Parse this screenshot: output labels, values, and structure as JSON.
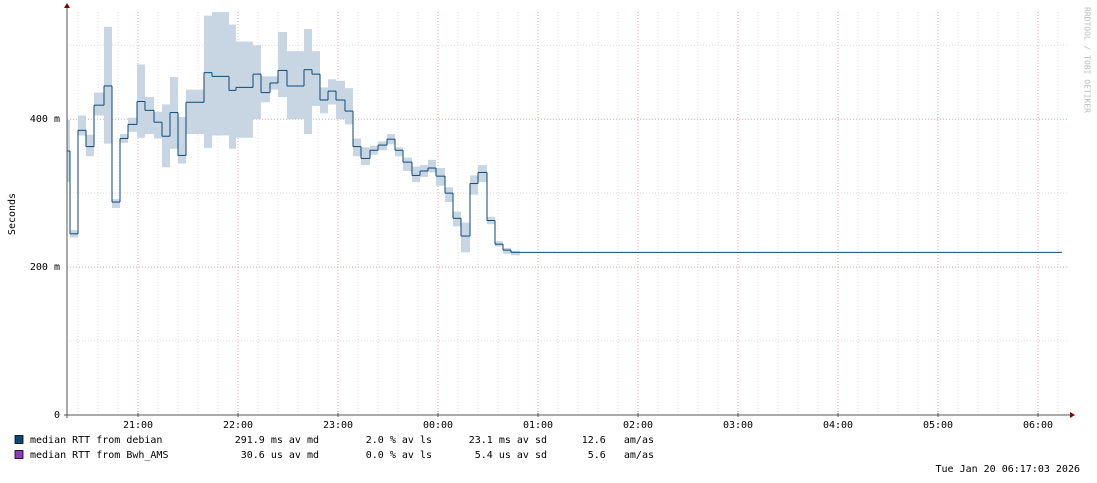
{
  "chart_data": {
    "type": "step",
    "y_label": "Seconds",
    "watermark": "RRDTOOL / TOBI OETIKER",
    "timestamp": "Tue Jan 20 06:17:03 2026",
    "xlim": [
      20.29,
      30.3
    ],
    "xticks": [
      {
        "value": 21,
        "label": "21:00"
      },
      {
        "value": 22,
        "label": "22:00"
      },
      {
        "value": 23,
        "label": "23:00"
      },
      {
        "value": 24,
        "label": "00:00"
      },
      {
        "value": 25,
        "label": "01:00"
      },
      {
        "value": 26,
        "label": "02:00"
      },
      {
        "value": 27,
        "label": "03:00"
      },
      {
        "value": 28,
        "label": "04:00"
      },
      {
        "value": 29,
        "label": "05:00"
      },
      {
        "value": 30,
        "label": "06:00"
      }
    ],
    "x_minor_step": 0.2,
    "ylim": [
      0,
      545
    ],
    "yticks": [
      0,
      {
        "value": 200,
        "label": "200 m"
      },
      {
        "value": 400,
        "label": "400 m"
      }
    ],
    "y_minor": [
      100,
      300,
      500
    ],
    "grid": true,
    "band_color": "#c8d5e3",
    "series": [
      {
        "name": "median RTT from debian",
        "color": "#0b4a78",
        "stats": [
          "291.9 ms av md",
          "2.0 % av ls",
          "23.1 ms av sd",
          "12.6   am/as"
        ],
        "x": [
          20.29,
          20.32,
          20.4,
          20.48,
          20.56,
          20.66,
          20.74,
          20.82,
          20.9,
          20.99,
          21.07,
          21.16,
          21.24,
          21.32,
          21.4,
          21.48,
          21.66,
          21.74,
          21.91,
          21.98,
          22.15,
          22.23,
          22.32,
          22.4,
          22.49,
          22.66,
          22.74,
          22.82,
          22.9,
          22.98,
          23.07,
          23.15,
          23.23,
          23.32,
          23.4,
          23.49,
          23.57,
          23.65,
          23.74,
          23.82,
          23.9,
          23.98,
          24.07,
          24.15,
          24.23,
          24.32,
          24.4,
          24.49,
          24.57,
          24.65,
          24.73,
          24.82
        ],
        "x_end": 30.24,
        "values": [
          357,
          245,
          385,
          363,
          419,
          445,
          288,
          374,
          393,
          424,
          412,
          396,
          377,
          409,
          351,
          423,
          463,
          458,
          439,
          443,
          461,
          436,
          449,
          466,
          445,
          467,
          461,
          426,
          438,
          426,
          411,
          363,
          347,
          358,
          365,
          373,
          358,
          342,
          324,
          330,
          334,
          323,
          300,
          266,
          242,
          313,
          328,
          263,
          231,
          223,
          220,
          220
        ],
        "band_low": [
          315,
          240,
          378,
          350,
          405,
          367,
          280,
          368,
          383,
          375,
          380,
          374,
          335,
          360,
          340,
          380,
          361,
          378,
          360,
          375,
          400,
          423,
          440,
          430,
          400,
          380,
          418,
          408,
          420,
          400,
          393,
          350,
          338,
          352,
          358,
          366,
          350,
          330,
          315,
          322,
          328,
          310,
          288,
          255,
          220,
          298,
          315,
          258,
          228,
          218,
          216,
          null
        ],
        "band_high": [
          399,
          250,
          405,
          379,
          436,
          525,
          292,
          380,
          402,
          474,
          430,
          410,
          420,
          457,
          403,
          440,
          540,
          545,
          528,
          505,
          500,
          458,
          458,
          518,
          492,
          522,
          492,
          443,
          454,
          452,
          442,
          374,
          362,
          364,
          370,
          380,
          362,
          348,
          336,
          338,
          345,
          334,
          308,
          275,
          260,
          324,
          338,
          268,
          235,
          226,
          222,
          null
        ]
      },
      {
        "name": "median RTT from Bwh_AMS",
        "color": "#8e3bbf",
        "stats": [
          "30.6 us av md",
          "0.0 % av ls",
          "5.4 us av sd",
          "5.6   am/as"
        ]
      }
    ]
  }
}
